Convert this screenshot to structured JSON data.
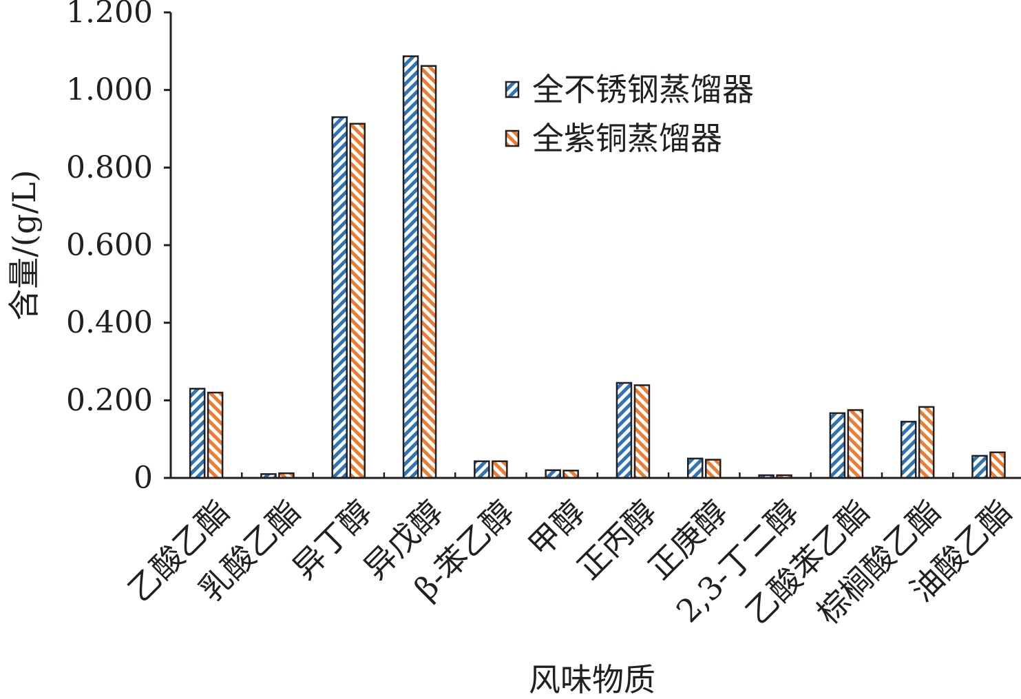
{
  "chart_data": {
    "type": "bar",
    "ylabel": "含量/(g/L)",
    "xlabel": "风味物质",
    "ylim": [
      0,
      1.2
    ],
    "y_ticks": [
      "0",
      "0.200",
      "0.400",
      "0.600",
      "0.800",
      "1.000",
      "1.200"
    ],
    "y_tick_values": [
      0,
      0.2,
      0.4,
      0.6,
      0.8,
      1.0,
      1.2
    ],
    "categories": [
      "乙酸乙酯",
      "乳酸乙酯",
      "异丁醇",
      "异戊醇",
      "β-苯乙醇",
      "甲醇",
      "正丙醇",
      "正庚醇",
      "2,3-丁二醇",
      "乙酸苯乙酯",
      "棕榈酸乙酯",
      "油酸乙酯"
    ],
    "series": [
      {
        "name": "全不锈钢蒸馏器",
        "color": "#2e75b6",
        "values": [
          0.23,
          0.01,
          0.93,
          1.087,
          0.043,
          0.02,
          0.245,
          0.05,
          0.007,
          0.167,
          0.145,
          0.057
        ]
      },
      {
        "name": "全紫铜蒸馏器",
        "color": "#ed7d31",
        "values": [
          0.22,
          0.012,
          0.913,
          1.062,
          0.043,
          0.019,
          0.239,
          0.047,
          0.007,
          0.175,
          0.183,
          0.066
        ]
      }
    ],
    "grid": false,
    "legend_position": "top-right"
  }
}
